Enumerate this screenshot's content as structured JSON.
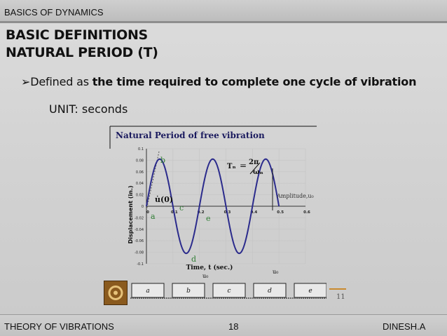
{
  "header": {
    "section": "BASICS OF DYNAMICS"
  },
  "slide": {
    "title_line1": "BASIC DEFINITIONS",
    "title_line2": "NATURAL PERIOD (T)",
    "bullet_prefix": "Defined as ",
    "bullet_bold": "the time required to complete one cycle of vibration",
    "unit": "UNIT: seconds"
  },
  "figure": {
    "heading": "Natural Period of free vibration",
    "ylabel": "Displacement (in.)",
    "xlabel": "Time, t (sec.)",
    "formula_T": "Tₙ",
    "formula_eq": "=",
    "formula_num": "2π",
    "formula_den": "ωₙ",
    "amplitude_label": "Amplitude,u₀",
    "u0dot_label": "u̇(0)",
    "u0_label": "u₀",
    "points": [
      "a",
      "b",
      "c",
      "d",
      "e"
    ],
    "yticks": [
      "0.1",
      "0.08",
      "0.06",
      "0.04",
      "0.02",
      "0",
      "-0.02",
      "-0.04",
      "-0.06",
      "-0.08",
      "-0.1"
    ],
    "xticks": [
      "0",
      "0.1",
      "0.2",
      "0.3",
      "0.4",
      "0.5",
      "0.6"
    ],
    "strip_labels": [
      "a",
      "b",
      "c",
      "d",
      "e"
    ],
    "small_page": "11",
    "colors": {
      "curve": "#2b2b8c",
      "labels": "#2e7d32",
      "heading": "#1a1a5e"
    }
  },
  "chart_data": {
    "type": "line",
    "title": "Natural Period of free vibration",
    "xlabel": "Time, t (sec.)",
    "ylabel": "Displacement (in.)",
    "xlim": [
      0,
      0.6
    ],
    "ylim": [
      -0.1,
      0.1
    ],
    "series": [
      {
        "x": [
          0,
          0.025,
          0.05,
          0.075,
          0.1,
          0.125,
          0.15,
          0.175,
          0.2,
          0.225,
          0.25,
          0.275,
          0.3,
          0.325,
          0.35,
          0.375,
          0.4,
          0.425,
          0.45,
          0.475,
          0.5
        ],
        "values": [
          0,
          0.058,
          0.082,
          0.058,
          0,
          -0.058,
          -0.082,
          -0.058,
          0,
          0.058,
          0.082,
          0.058,
          0,
          -0.058,
          -0.082,
          -0.058,
          0,
          0.058,
          0.082,
          0.058,
          0
        ]
      }
    ]
  },
  "footer": {
    "course": "THEORY OF VIBRATIONS",
    "page": "18",
    "author": "DINESH.A"
  }
}
